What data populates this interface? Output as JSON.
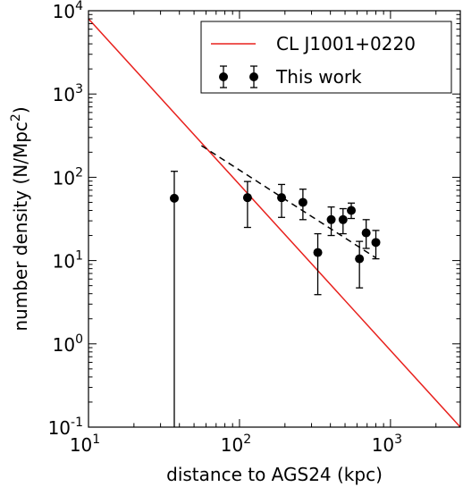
{
  "chart_data": {
    "type": "scatter",
    "xscale": "log",
    "yscale": "log",
    "xlim": [
      10,
      2900
    ],
    "ylim": [
      0.1,
      10000
    ],
    "xlabel": "distance to AGS24 (kpc)",
    "ylabel_main": "number density (N/Mpc",
    "ylabel_sup": "2",
    "ylabel_tail": ")",
    "x_ticks": [
      {
        "value": 10,
        "base": "10",
        "exp": "1"
      },
      {
        "value": 100,
        "base": "10",
        "exp": "2"
      },
      {
        "value": 1000,
        "base": "10",
        "exp": "3"
      }
    ],
    "y_ticks": [
      {
        "value": 0.1,
        "base": "10",
        "exp": "-1"
      },
      {
        "value": 1,
        "base": "10",
        "exp": "0"
      },
      {
        "value": 10,
        "base": "10",
        "exp": "1"
      },
      {
        "value": 100,
        "base": "10",
        "exp": "2"
      },
      {
        "value": 1000,
        "base": "10",
        "exp": "3"
      },
      {
        "value": 10000,
        "base": "10",
        "exp": "4"
      }
    ],
    "legend_position": "top-right",
    "series": [
      {
        "name": "CL J1001+0220",
        "kind": "line",
        "color": "#e8211d",
        "x": [
          10,
          2900
        ],
        "y": [
          8000,
          0.1
        ]
      },
      {
        "name": "This work",
        "kind": "errorbar",
        "color": "#000000",
        "points": [
          {
            "x": 37,
            "y": 56,
            "ylo": 0.05,
            "yhi": 118
          },
          {
            "x": 113,
            "y": 57,
            "ylo": 25,
            "yhi": 89
          },
          {
            "x": 190,
            "y": 57,
            "ylo": 33,
            "yhi": 82
          },
          {
            "x": 263,
            "y": 50,
            "ylo": 31,
            "yhi": 72
          },
          {
            "x": 330,
            "y": 12.5,
            "ylo": 3.9,
            "yhi": 21
          },
          {
            "x": 405,
            "y": 31,
            "ylo": 20,
            "yhi": 44
          },
          {
            "x": 485,
            "y": 31,
            "ylo": 21,
            "yhi": 42
          },
          {
            "x": 550,
            "y": 40,
            "ylo": 32,
            "yhi": 49
          },
          {
            "x": 623,
            "y": 10.5,
            "ylo": 4.7,
            "yhi": 17
          },
          {
            "x": 690,
            "y": 21.5,
            "ylo": 14,
            "yhi": 31
          },
          {
            "x": 800,
            "y": 16.5,
            "ylo": 10.5,
            "yhi": 23
          }
        ]
      },
      {
        "kind": "dashed-line",
        "color": "#000000",
        "x": [
          56,
          800
        ],
        "y": [
          240,
          10.8
        ]
      }
    ]
  }
}
